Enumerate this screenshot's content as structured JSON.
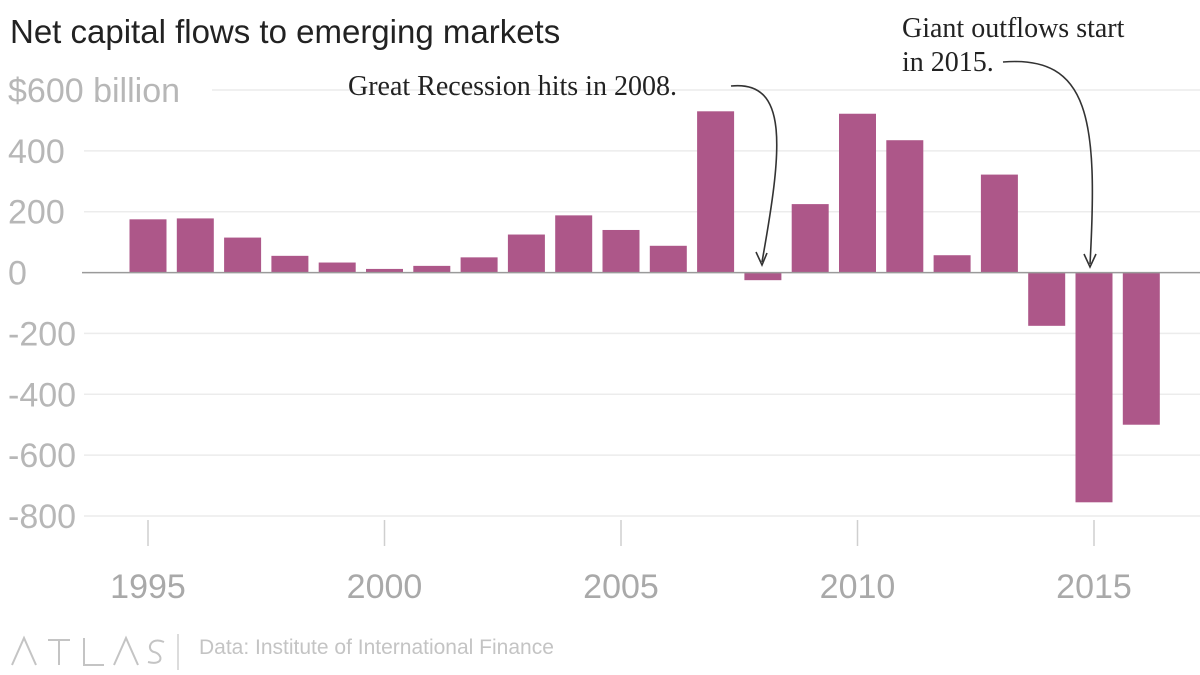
{
  "chart_data": {
    "type": "bar",
    "title": "Net capital flows to emerging markets",
    "ylabel": "$600 billion",
    "xlabel": "",
    "ylim": [
      -850,
      620
    ],
    "xlim": [
      1994.0,
      2017.2
    ],
    "grid": true,
    "x": [
      1995,
      1996,
      1997,
      1998,
      1999,
      2000,
      2001,
      2002,
      2003,
      2004,
      2005,
      2006,
      2007,
      2008,
      2009,
      2010,
      2011,
      2012,
      2013,
      2014,
      2015,
      2016
    ],
    "values": [
      175,
      178,
      115,
      55,
      33,
      12,
      22,
      50,
      125,
      188,
      140,
      88,
      530,
      -25,
      225,
      522,
      435,
      57,
      322,
      -175,
      -755,
      -500
    ],
    "yticks": [
      600,
      400,
      200,
      0,
      -200,
      -400,
      -600,
      -800
    ],
    "ytick_labels": [
      "$600 billion",
      "400",
      "200",
      "0",
      "-200",
      "-400",
      "-600",
      "-800"
    ],
    "xticks": [
      1995,
      2000,
      2005,
      2010,
      2015
    ],
    "xtick_labels": [
      "1995",
      "2000",
      "2005",
      "2010",
      "2015"
    ],
    "color": "#ad5789",
    "annotations": [
      {
        "lines": [
          "Great Recession hits in 2008."
        ],
        "target_year": 2008
      },
      {
        "lines": [
          "Giant outflows start",
          "in 2015."
        ],
        "target_year": 2015
      }
    ]
  },
  "footer": {
    "logo": "ATLAS",
    "source": "Data: Institute of International Finance"
  }
}
